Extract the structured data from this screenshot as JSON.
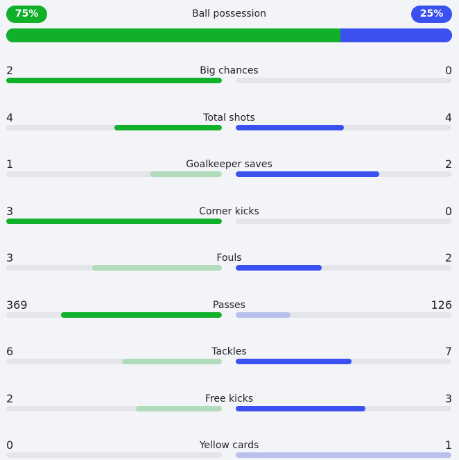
{
  "possession": {
    "label": "Ball possession",
    "home_value": "75%",
    "away_value": "25%",
    "home_fraction": 0.75,
    "away_fraction": 0.25
  },
  "colors": {
    "home_strong": "#10b02a",
    "home_light": "#b0dcbb",
    "away_strong": "#3a51f0",
    "away_light": "#b9c0ec",
    "track": "#e4e5ea"
  },
  "stats": [
    {
      "label": "Big chances",
      "home": "2",
      "away": "0",
      "home_fraction": 1.0,
      "away_fraction": 0.0,
      "leader": "home"
    },
    {
      "label": "Total shots",
      "home": "4",
      "away": "4",
      "home_fraction": 0.5,
      "away_fraction": 0.5,
      "leader": "both"
    },
    {
      "label": "Goalkeeper saves",
      "home": "1",
      "away": "2",
      "home_fraction": 0.333,
      "away_fraction": 0.667,
      "leader": "away"
    },
    {
      "label": "Corner kicks",
      "home": "3",
      "away": "0",
      "home_fraction": 1.0,
      "away_fraction": 0.0,
      "leader": "home"
    },
    {
      "label": "Fouls",
      "home": "3",
      "away": "2",
      "home_fraction": 0.6,
      "away_fraction": 0.4,
      "leader": "away"
    },
    {
      "label": "Passes",
      "home": "369",
      "away": "126",
      "home_fraction": 0.745,
      "away_fraction": 0.255,
      "leader": "home"
    },
    {
      "label": "Tackles",
      "home": "6",
      "away": "7",
      "home_fraction": 0.462,
      "away_fraction": 0.538,
      "leader": "away"
    },
    {
      "label": "Free kicks",
      "home": "2",
      "away": "3",
      "home_fraction": 0.4,
      "away_fraction": 0.6,
      "leader": "away"
    },
    {
      "label": "Yellow cards",
      "home": "0",
      "away": "1",
      "home_fraction": 0.0,
      "away_fraction": 1.0,
      "leader": "home"
    }
  ]
}
